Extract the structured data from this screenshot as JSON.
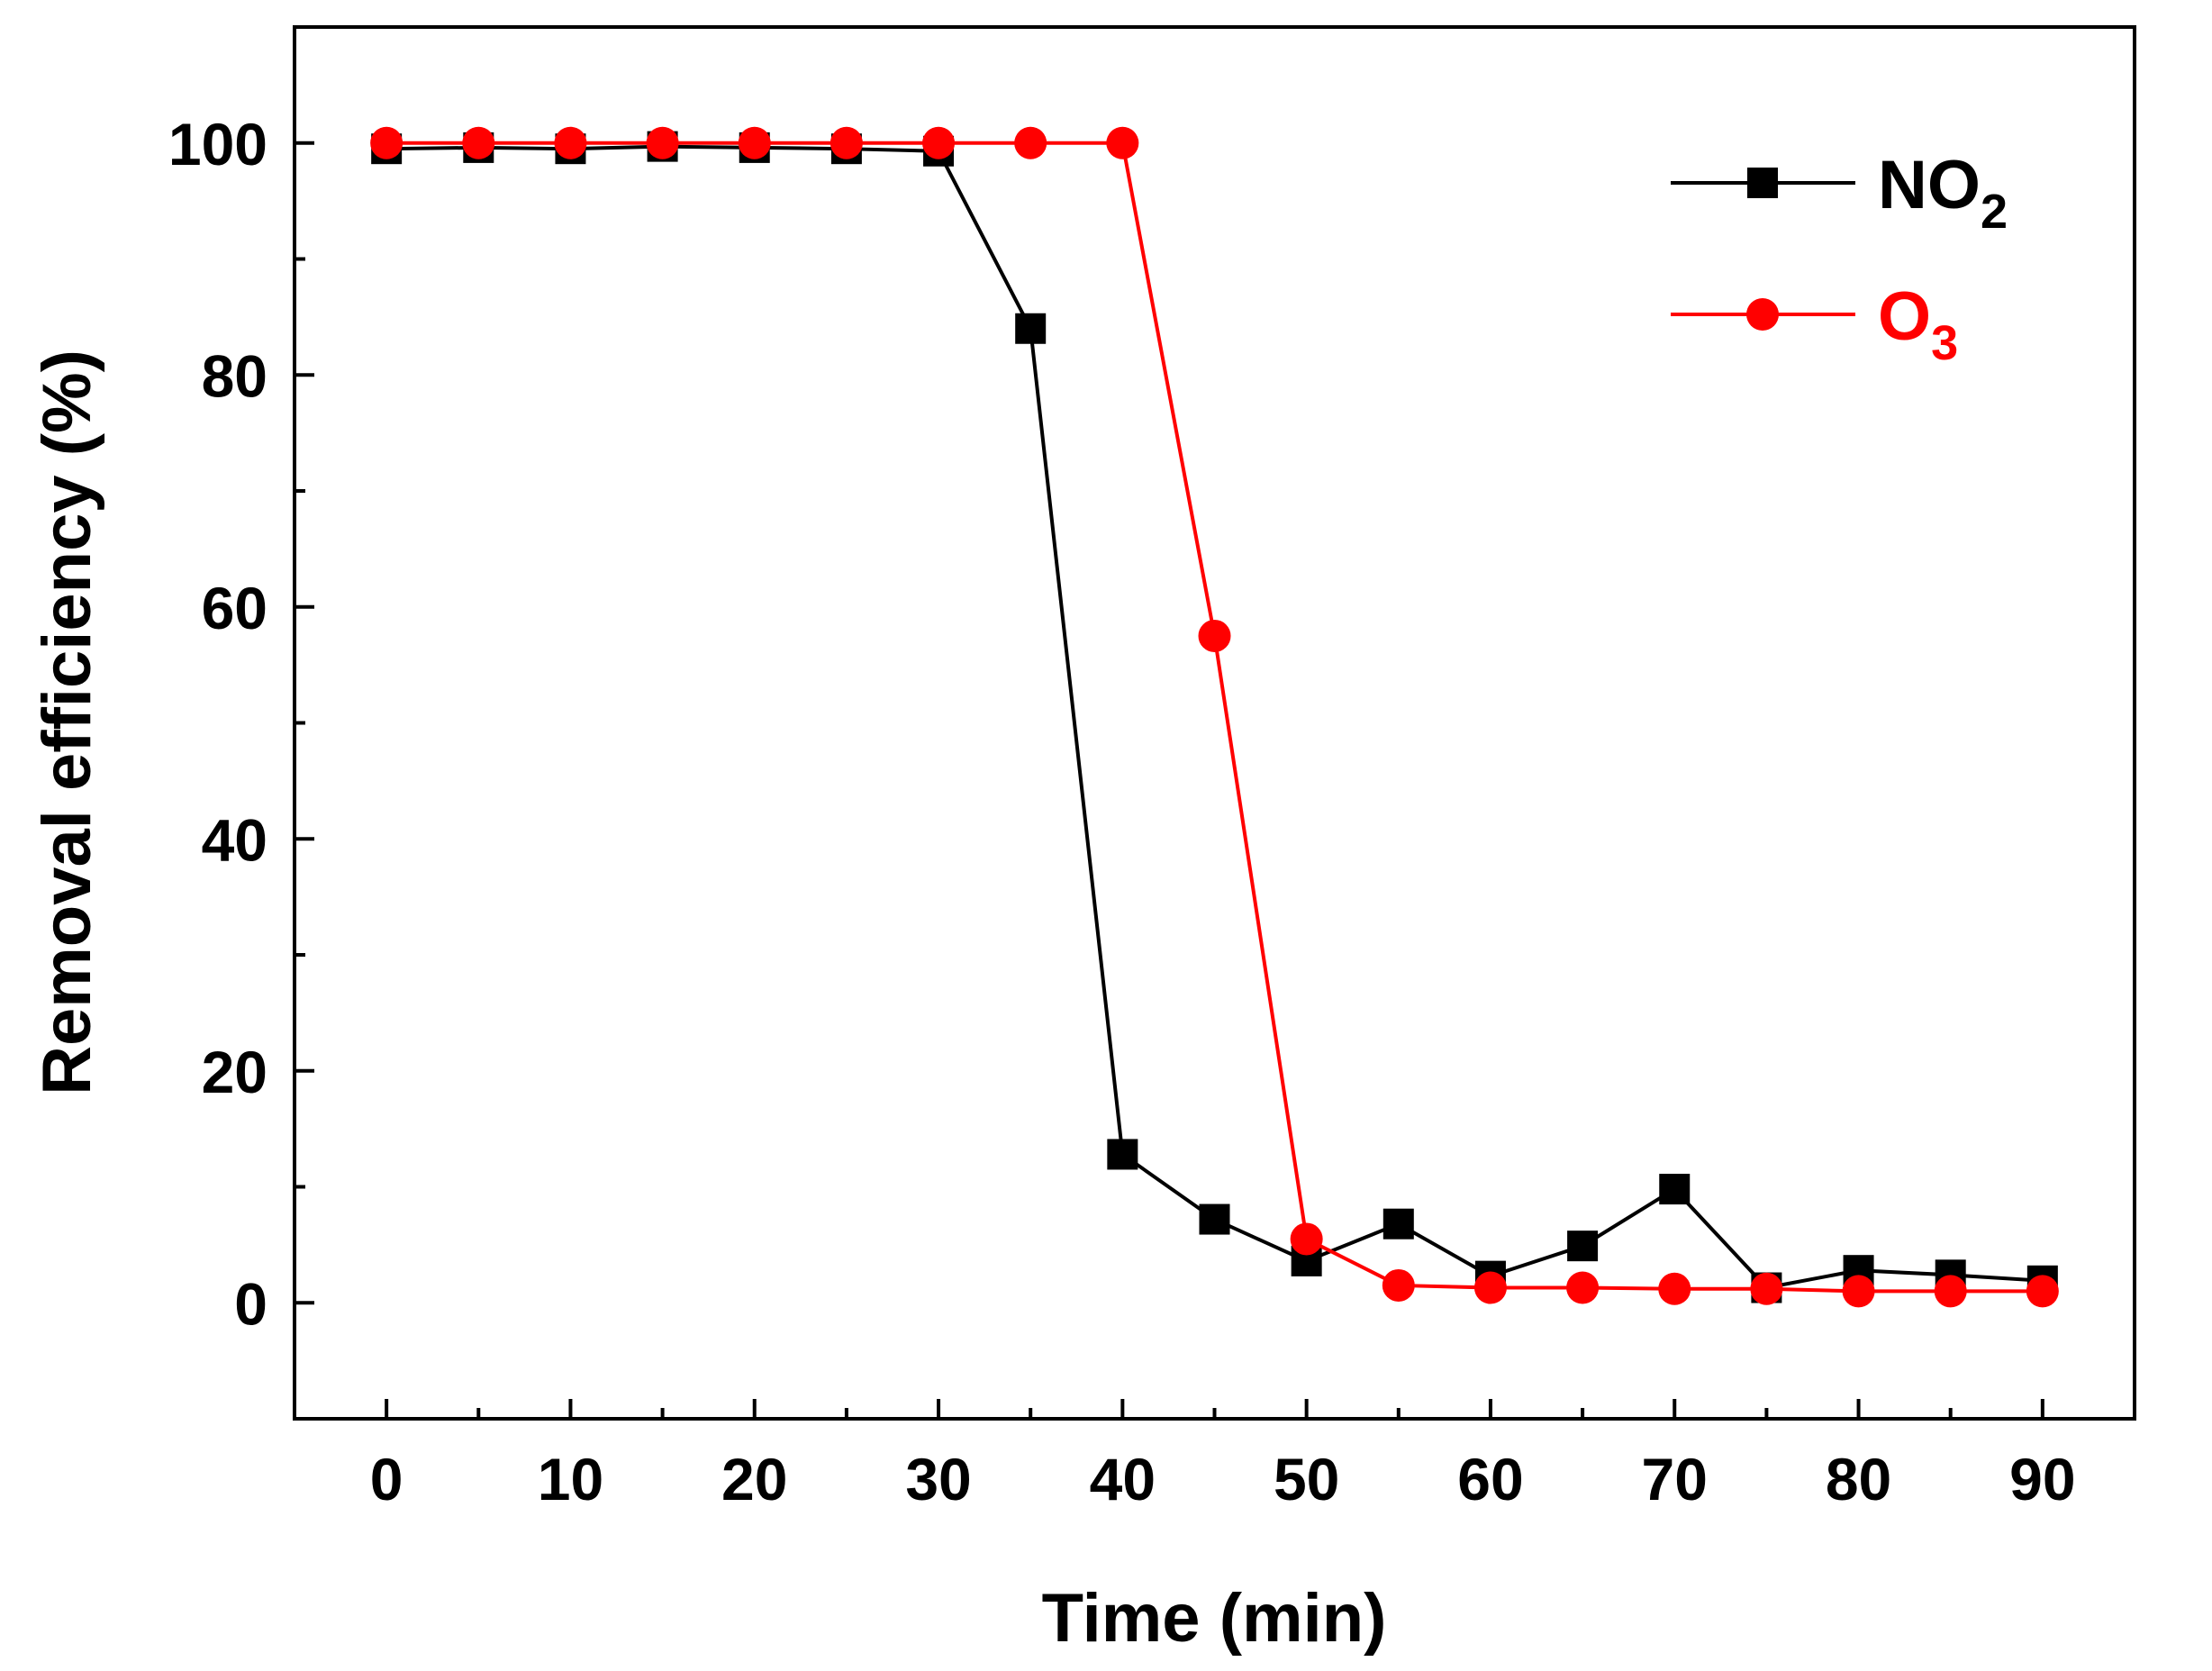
{
  "chart_data": {
    "type": "line",
    "title": "",
    "xlabel": "Time (min)",
    "ylabel": "Removal efficiency (%)",
    "xlim": [
      -5,
      95
    ],
    "ylim": [
      -10,
      110
    ],
    "x_ticks": [
      0,
      10,
      20,
      30,
      40,
      50,
      60,
      70,
      80,
      90
    ],
    "y_ticks": [
      0,
      20,
      40,
      60,
      80,
      100
    ],
    "x": [
      0,
      5,
      10,
      15,
      20,
      25,
      30,
      35,
      40,
      45,
      50,
      55,
      60,
      65,
      70,
      75,
      80,
      85,
      90
    ],
    "series": [
      {
        "name": "NO2",
        "label_main": "NO",
        "label_sub": "2",
        "color": "#000000",
        "marker": "square",
        "values": [
          99.5,
          99.6,
          99.5,
          99.7,
          99.6,
          99.5,
          99.3,
          84,
          12.8,
          7.2,
          3.6,
          6.8,
          2.3,
          4.9,
          9.8,
          1.3,
          2.8,
          2.4,
          1.9
        ]
      },
      {
        "name": "O3",
        "label_main": "O",
        "label_sub": "3",
        "color": "#ff0000",
        "marker": "circle",
        "values": [
          100,
          100,
          100,
          100,
          100,
          100,
          100,
          100,
          100,
          57.5,
          5.5,
          1.5,
          1.3,
          1.3,
          1.2,
          1.2,
          1.0,
          1.0,
          1.0
        ]
      }
    ],
    "legend_position": "top-right"
  }
}
